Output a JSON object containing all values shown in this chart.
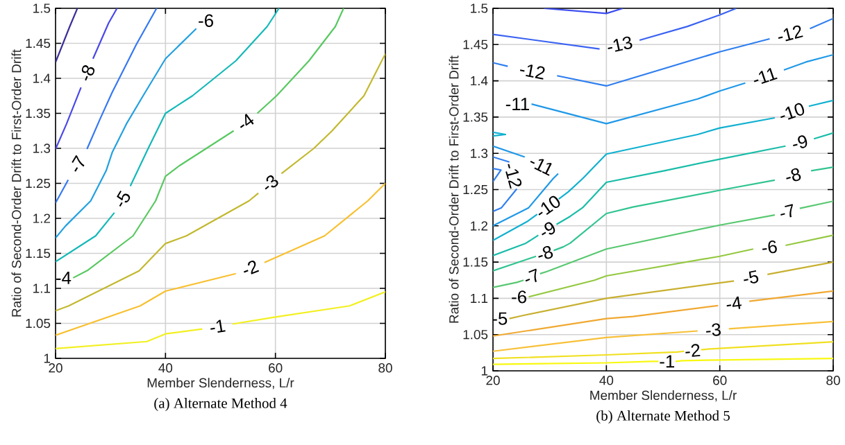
{
  "chart_data": [
    {
      "type": "line",
      "title": "(a) Alternate Method 4",
      "xlabel": "Member Slenderness, L/r",
      "ylabel": "Ratio of Second-Order Drift to First-Order Drift",
      "xlim": [
        20,
        80
      ],
      "ylim": [
        1,
        1.5
      ],
      "xticks": [
        20,
        40,
        60,
        80
      ],
      "yticks": [
        1,
        1.05,
        1.1,
        1.15,
        1.2,
        1.25,
        1.3,
        1.35,
        1.4,
        1.45,
        1.5
      ],
      "grid": true,
      "series": [
        {
          "color": "#3b2e9a",
          "x": [
            20,
            22.58,
            23.97
          ],
          "values": [
            1.423,
            1.474,
            1.5
          ]
        },
        {
          "name": "-8",
          "color": "#4a48e8",
          "x": [
            20,
            22.0,
            24.63,
            25.7,
            26.81,
            29.65,
            31.18
          ],
          "values": [
            1.299,
            1.335,
            1.387,
            null,
            1.428,
            1.479,
            1.5
          ]
        },
        {
          "name": "-7",
          "color": "#3478f2",
          "x": [
            20,
            22.3,
            24.0,
            25.72,
            28.1,
            30.3,
            34.67,
            38.38
          ],
          "values": [
            1.222,
            1.255,
            null,
            1.299,
            1.342,
            1.38,
            1.448,
            1.5
          ]
        },
        {
          "name": "-6",
          "color": "#22a0e0",
          "x": [
            20,
            21.8,
            26.4,
            29.2,
            30.3,
            32.9,
            36.0,
            40,
            45.6
          ],
          "values": [
            1.172,
            1.189,
            1.225,
            1.268,
            1.294,
            1.335,
            1.376,
            1.428,
            1.471
          ]
        },
        {
          "name": "-5",
          "color": "#14b8b8",
          "x": [
            20,
            27.3,
            30.7,
            32.2,
            33.6,
            36.86,
            40,
            44.9,
            52.8,
            58.5,
            60.65
          ],
          "values": [
            1.138,
            1.175,
            1.208,
            null,
            1.246,
            1.3,
            1.35,
            1.375,
            1.425,
            1.474,
            1.5
          ]
        },
        {
          "name": "-4",
          "color": "#58c860",
          "x": [
            23.2,
            25.9,
            34.1,
            38.2,
            40,
            42.5,
            52.4,
            54.5,
            56.7,
            60.2,
            66.1,
            70.9,
            72.4
          ],
          "values": [
            1.115,
            1.126,
            1.175,
            1.225,
            1.26,
            1.275,
            1.325,
            null,
            1.35,
            1.375,
            1.425,
            1.474,
            1.5
          ]
        },
        {
          "name": "-3",
          "color": "#c2b82e",
          "x": [
            20,
            22.4,
            35.2,
            40,
            43.8,
            55.2,
            56.9,
            59.0,
            61.1,
            67.0,
            70.3,
            76.1,
            80
          ],
          "values": [
            1.068,
            1.075,
            1.125,
            1.164,
            1.175,
            1.225,
            1.236,
            null,
            1.264,
            1.3,
            1.325,
            1.375,
            1.435
          ]
        },
        {
          "name": "-2",
          "color": "#f8c030",
          "x": [
            20,
            35.4,
            40,
            52.8,
            55.4,
            58.0,
            68.95,
            76.8,
            80
          ],
          "values": [
            1.033,
            1.075,
            1.096,
            1.121,
            null,
            1.137,
            1.175,
            1.225,
            1.25
          ]
        },
        {
          "name": "-1",
          "color": "#f2f020",
          "x": [
            20,
            36.6,
            40,
            46.7,
            49.4,
            52.2,
            60.0,
            73.5,
            80
          ],
          "values": [
            1.014,
            1.024,
            1.035,
            1.042,
            null,
            1.049,
            1.059,
            1.075,
            1.095
          ]
        }
      ]
    },
    {
      "type": "line",
      "title": "(b) Alternate Method 5",
      "xlabel": "Member Slenderness, L/r",
      "ylabel": "Ratio of Second-Order Drift to First-Order Drift",
      "xlim": [
        20,
        80
      ],
      "ylim": [
        1,
        1.5
      ],
      "xticks": [
        20,
        40,
        60,
        80
      ],
      "yticks": [
        1,
        1.05,
        1.1,
        1.15,
        1.2,
        1.25,
        1.3,
        1.35,
        1.4,
        1.45,
        1.5
      ],
      "grid": true,
      "series": [
        {
          "color": "#3c4cf0",
          "x": [
            29.0,
            40,
            42.9
          ],
          "values": [
            1.5,
            1.493,
            1.5
          ]
        },
        {
          "name": "-13",
          "color": "#3a62f2",
          "x": [
            20,
            38.8,
            42.3,
            45.85,
            54.3,
            60,
            62.9
          ],
          "values": [
            1.464,
            1.444,
            null,
            1.456,
            1.475,
            1.491,
            1.5
          ]
        },
        {
          "name": "-12",
          "color": "#2f7ef0",
          "x": [
            20,
            22.6,
            27.0,
            31.3,
            40,
            60,
            68.8,
            72.3,
            75.9,
            80
          ],
          "values": [
            1.425,
            1.42,
            null,
            1.407,
            1.393,
            1.44,
            1.458,
            null,
            1.472,
            1.486
          ]
        },
        {
          "name": "-11",
          "color": "#1f98e8",
          "x": [
            26.8,
            40,
            56.1,
            60,
            64.5,
            68.0,
            71.3,
            75.2,
            80
          ],
          "values": [
            1.368,
            1.341,
            1.375,
            1.386,
            1.397,
            null,
            1.415,
            1.426,
            1.436
          ]
        },
        {
          "name": "-12",
          "color": "#2f7ef0",
          "x": [
            20,
            21.5,
            24.2,
            23.5,
            22.9,
            20
          ],
          "values": [
            1.22,
            1.225,
            1.251,
            null,
            1.288,
            1.295
          ]
        },
        {
          "name": "-11",
          "color": "#1f98e8",
          "x": [
            20,
            26.3,
            30.6,
            31.5,
            28.5,
            25.6,
            20
          ],
          "values": [
            1.2,
            1.225,
            1.265,
            1.272,
            null,
            1.295,
            1.31
          ]
        },
        {
          "color": "#2f7ef0",
          "x": [
            20,
            21.4,
            20
          ],
          "values": [
            1.279,
            1.277,
            1.261
          ]
        },
        {
          "color": "#10b0d0",
          "x": [
            20,
            22.2,
            20
          ],
          "values": [
            1.329,
            1.326,
            1.324
          ]
        },
        {
          "name": "-10",
          "color": "#10b0d0",
          "x": [
            20,
            26.05,
            27.8,
            29.7,
            31.6,
            33.3,
            35.8,
            40,
            56.1,
            60,
            69.7,
            72.7,
            75.7,
            80
          ],
          "values": [
            1.18,
            1.206,
            1.216,
            null,
            1.237,
            1.247,
            1.265,
            1.299,
            1.326,
            1.335,
            1.349,
            null,
            1.365,
            1.373
          ]
        },
        {
          "name": "-9",
          "color": "#18bca8",
          "x": [
            20,
            25.8,
            28.0,
            29.6,
            31.2,
            33.6,
            35.8,
            40,
            50.2,
            60,
            71.6,
            74.1,
            76.6,
            80
          ],
          "values": [
            1.159,
            1.176,
            1.187,
            null,
            1.202,
            1.213,
            1.225,
            1.26,
            1.276,
            1.292,
            1.31,
            null,
            1.32,
            1.328
          ]
        },
        {
          "name": "-8",
          "color": "#30c490",
          "x": [
            20,
            26.05,
            27.6,
            29.2,
            30.7,
            32.4,
            33.6,
            40,
            44.7,
            60,
            69.7,
            72.9,
            76.1,
            80
          ],
          "values": [
            1.138,
            1.154,
            1.158,
            null,
            1.166,
            1.171,
            1.176,
            1.217,
            1.226,
            1.249,
            1.263,
            null,
            1.276,
            1.281
          ]
        },
        {
          "name": "-7",
          "color": "#58c870",
          "x": [
            20,
            24.2,
            25.4,
            26.9,
            28.3,
            29.5,
            40,
            60,
            69.7,
            71.9,
            74.1,
            80
          ],
          "values": [
            1.115,
            1.122,
            1.125,
            null,
            1.134,
            1.137,
            1.168,
            1.201,
            1.215,
            null,
            1.224,
            1.234
          ]
        },
        {
          "name": "-6",
          "color": "#94c840",
          "x": [
            26.3,
            37.9,
            40,
            60,
            65.9,
            68.8,
            71.6,
            80
          ],
          "values": [
            1.102,
            1.125,
            1.131,
            1.158,
            1.168,
            null,
            1.173,
            1.187
          ]
        },
        {
          "name": "-5",
          "color": "#c8b030",
          "x": [
            22.9,
            25.1,
            40,
            62.5,
            65.4,
            68.4,
            80
          ],
          "values": [
            1.072,
            1.076,
            1.1,
            1.124,
            null,
            1.133,
            1.15
          ]
        },
        {
          "name": "-4",
          "color": "#f0a830",
          "x": [
            20,
            40,
            44.7,
            59.7,
            62.5,
            65.2,
            80
          ],
          "values": [
            1.048,
            1.072,
            1.075,
            1.09,
            null,
            1.096,
            1.11
          ]
        },
        {
          "name": "-3",
          "color": "#f8c038",
          "x": [
            20,
            40,
            56.1,
            58.9,
            61.6,
            80
          ],
          "values": [
            1.027,
            1.046,
            1.055,
            null,
            1.058,
            1.068
          ]
        },
        {
          "name": "-2",
          "color": "#f0e020",
          "x": [
            20,
            40,
            52.45,
            53.7,
            55.2,
            56.7,
            57.9,
            80
          ],
          "values": [
            1.017,
            1.022,
            1.026,
            1.027,
            null,
            1.029,
            1.03,
            1.04
          ]
        },
        {
          "name": "-1",
          "color": "#f8f810",
          "x": [
            20,
            40,
            47.9,
            49.2,
            50.7,
            52.2,
            53.4,
            60,
            80
          ],
          "values": [
            1.009,
            1.011,
            1.013,
            1.013,
            null,
            1.013,
            1.014,
            1.015,
            1.017
          ]
        }
      ]
    }
  ]
}
